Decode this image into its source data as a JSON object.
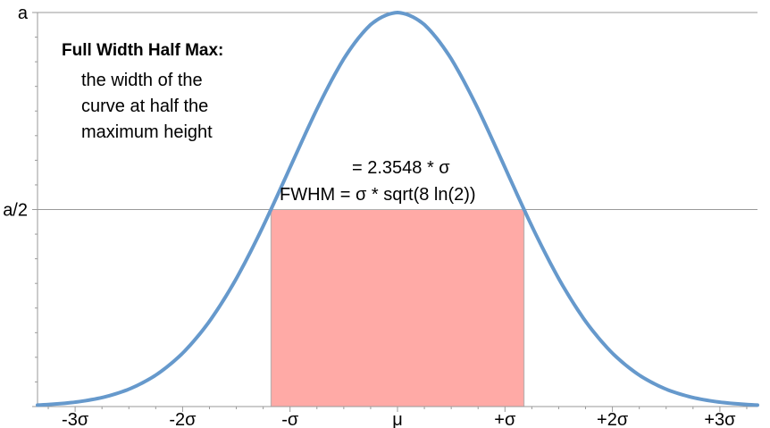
{
  "chart_data": {
    "type": "line",
    "title": "",
    "xlabel": "",
    "ylabel": "",
    "x_ticks": [
      {
        "value": -3,
        "label": "-3σ"
      },
      {
        "value": -2,
        "label": "-2σ"
      },
      {
        "value": -1,
        "label": "-σ"
      },
      {
        "value": 0,
        "label": "μ"
      },
      {
        "value": 1,
        "label": "+σ"
      },
      {
        "value": 2,
        "label": "+2σ"
      },
      {
        "value": 3,
        "label": "+3σ"
      }
    ],
    "y_ticks": [
      {
        "value": 1,
        "label": "a"
      },
      {
        "value": 0.5,
        "label": "a/2"
      }
    ],
    "xlim": [
      -3.35,
      3.35
    ],
    "ylim": [
      0,
      1
    ],
    "grid": "horizontal at a and a/2",
    "series": [
      {
        "x": [
          -3.35,
          -3.0,
          -2.75,
          -2.5,
          -2.25,
          -2.0,
          -1.75,
          -1.5,
          -1.25,
          -1.0,
          -0.75,
          -0.5,
          -0.25,
          0.0,
          0.25,
          0.5,
          0.75,
          1.0,
          1.25,
          1.5,
          1.75,
          2.0,
          2.25,
          2.5,
          2.75,
          3.0,
          3.35
        ],
        "values": [
          0.004,
          0.011,
          0.023,
          0.044,
          0.08,
          0.135,
          0.216,
          0.325,
          0.458,
          0.607,
          0.755,
          0.882,
          0.969,
          1.0,
          0.969,
          0.882,
          0.755,
          0.607,
          0.458,
          0.325,
          0.216,
          0.135,
          0.08,
          0.044,
          0.023,
          0.011,
          0.004
        ],
        "color": "#6699cc"
      }
    ],
    "shaded_region": {
      "x_start": -1.1774,
      "x_end": 1.1774,
      "y_top": 0.5,
      "color": "#ffaaa6"
    },
    "annotations": {
      "title": "Full Width Half Max:",
      "description": [
        "the width of the",
        "curve at half the",
        "maximum height"
      ],
      "formula_1": "= 2.3548 * σ",
      "formula_2": "FWHM = σ * sqrt(8 ln(2))"
    }
  }
}
